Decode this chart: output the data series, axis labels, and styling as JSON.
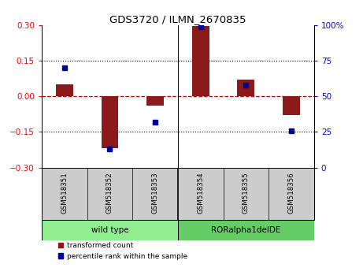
{
  "title": "GDS3720 / ILMN_2670835",
  "samples": [
    "GSM518351",
    "GSM518352",
    "GSM518353",
    "GSM518354",
    "GSM518355",
    "GSM518356"
  ],
  "transformed_counts": [
    0.05,
    -0.22,
    -0.04,
    0.295,
    0.07,
    -0.08
  ],
  "percentile_ranks": [
    70,
    13,
    32,
    99,
    58,
    26
  ],
  "groups": [
    {
      "label": "wild type",
      "start": 0,
      "end": 3,
      "color": "#90EE90"
    },
    {
      "label": "RORalpha1delDE",
      "start": 3,
      "end": 6,
      "color": "#66CC66"
    }
  ],
  "ylim_left": [
    -0.3,
    0.3
  ],
  "ylim_right": [
    0,
    100
  ],
  "yticks_left": [
    -0.3,
    -0.15,
    0,
    0.15,
    0.3
  ],
  "yticks_right": [
    0,
    25,
    50,
    75,
    100
  ],
  "bar_color": "#8B1A1A",
  "dot_color": "#000099",
  "zero_line_color": "#CC0000",
  "dot_line_color": "#000000",
  "background_color": "#FFFFFF",
  "sample_box_color": "#CCCCCC",
  "legend_labels": [
    "transformed count",
    "percentile rank within the sample"
  ],
  "legend_colors": [
    "#8B1A1A",
    "#000099"
  ]
}
